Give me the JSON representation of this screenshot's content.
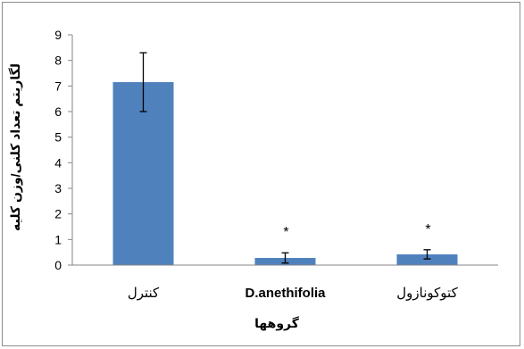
{
  "chart_data": {
    "type": "bar",
    "categories": [
      "کنترل",
      "D.anethifolia",
      "کتوکونازول"
    ],
    "values": [
      7.15,
      0.28,
      0.42
    ],
    "errors": [
      1.15,
      0.2,
      0.18
    ],
    "significance": [
      "",
      "*",
      "*"
    ],
    "xlabel": "گروهها",
    "ylabel": "لگاریتم تعداد کلنی/وزن کلیه",
    "ylim": [
      0,
      9
    ],
    "yticks": [
      0,
      1,
      2,
      3,
      4,
      5,
      6,
      7,
      8,
      9
    ],
    "bar_color": "#4f81bd",
    "grid": false,
    "legend": "none"
  }
}
